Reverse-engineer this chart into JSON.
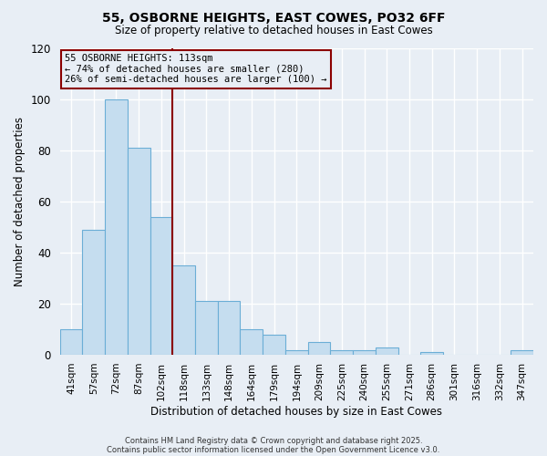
{
  "title": "55, OSBORNE HEIGHTS, EAST COWES, PO32 6FF",
  "subtitle": "Size of property relative to detached houses in East Cowes",
  "xlabel": "Distribution of detached houses by size in East Cowes",
  "ylabel": "Number of detached properties",
  "bar_labels": [
    "41sqm",
    "57sqm",
    "72sqm",
    "87sqm",
    "102sqm",
    "118sqm",
    "133sqm",
    "148sqm",
    "164sqm",
    "179sqm",
    "194sqm",
    "209sqm",
    "225sqm",
    "240sqm",
    "255sqm",
    "271sqm",
    "286sqm",
    "301sqm",
    "316sqm",
    "332sqm",
    "347sqm"
  ],
  "bar_values": [
    10,
    49,
    100,
    81,
    54,
    35,
    21,
    21,
    10,
    8,
    2,
    5,
    2,
    2,
    3,
    0,
    1,
    0,
    0,
    0,
    2
  ],
  "bar_color": "#c5ddef",
  "bar_edge_color": "#6baed6",
  "ylim": [
    0,
    120
  ],
  "yticks": [
    0,
    20,
    40,
    60,
    80,
    100,
    120
  ],
  "vline_color": "#8b0000",
  "annotation_title": "55 OSBORNE HEIGHTS: 113sqm",
  "annotation_line1": "← 74% of detached houses are smaller (280)",
  "annotation_line2": "26% of semi-detached houses are larger (100) →",
  "background_color": "#e8eef5",
  "grid_color": "#ffffff",
  "footer1": "Contains HM Land Registry data © Crown copyright and database right 2025.",
  "footer2": "Contains public sector information licensed under the Open Government Licence v3.0."
}
